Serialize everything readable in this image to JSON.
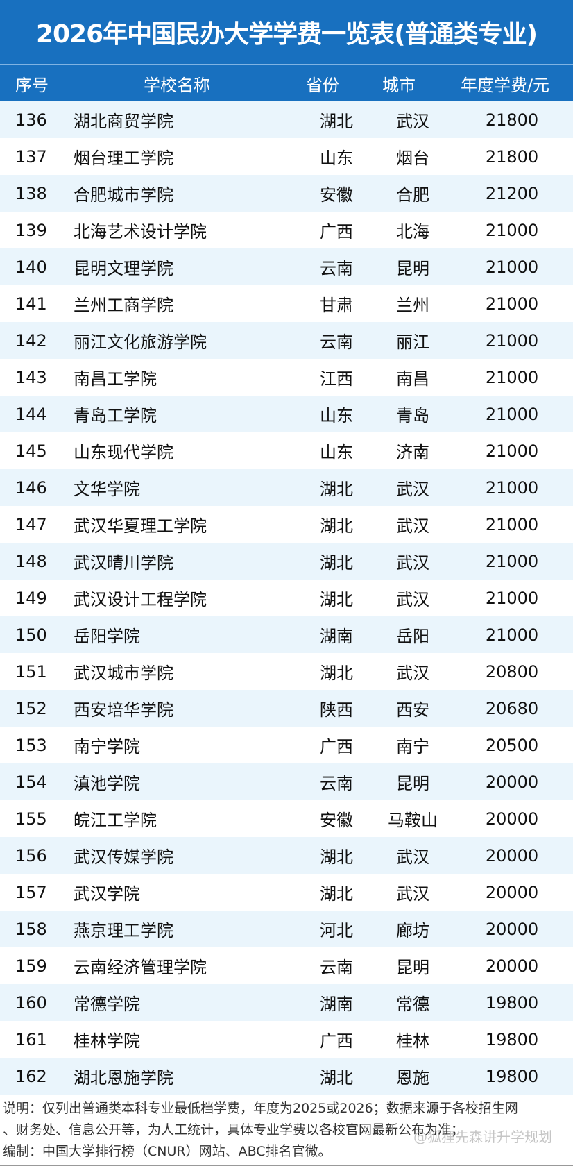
{
  "title": "2026年中国民办大学学费一览表(普通类专业)",
  "headers": [
    "序号",
    "学校名称",
    "省份",
    "城市",
    "年度学费/元"
  ],
  "rows": [
    [
      "136",
      "湖北商贸学院",
      "湖北",
      "武汉",
      "21800"
    ],
    [
      "137",
      "烟台理工学院",
      "山东",
      "烟台",
      "21800"
    ],
    [
      "138",
      "合肥城市学院",
      "安徽",
      "合肥",
      "21200"
    ],
    [
      "139",
      "北海艺术设计学院",
      "广西",
      "北海",
      "21000"
    ],
    [
      "140",
      "昆明文理学院",
      "云南",
      "昆明",
      "21000"
    ],
    [
      "141",
      "兰州工商学院",
      "甘肃",
      "兰州",
      "21000"
    ],
    [
      "142",
      "丽江文化旅游学院",
      "云南",
      "丽江",
      "21000"
    ],
    [
      "143",
      "南昌工学院",
      "江西",
      "南昌",
      "21000"
    ],
    [
      "144",
      "青岛工学院",
      "山东",
      "青岛",
      "21000"
    ],
    [
      "145",
      "山东现代学院",
      "山东",
      "济南",
      "21000"
    ],
    [
      "146",
      "文华学院",
      "湖北",
      "武汉",
      "21000"
    ],
    [
      "147",
      "武汉华夏理工学院",
      "湖北",
      "武汉",
      "21000"
    ],
    [
      "148",
      "武汉晴川学院",
      "湖北",
      "武汉",
      "21000"
    ],
    [
      "149",
      "武汉设计工程学院",
      "湖北",
      "武汉",
      "21000"
    ],
    [
      "150",
      "岳阳学院",
      "湖南",
      "岳阳",
      "21000"
    ],
    [
      "151",
      "武汉城市学院",
      "湖北",
      "武汉",
      "20800"
    ],
    [
      "152",
      "西安培华学院",
      "陕西",
      "西安",
      "20680"
    ],
    [
      "153",
      "南宁学院",
      "广西",
      "南宁",
      "20500"
    ],
    [
      "154",
      "滇池学院",
      "云南",
      "昆明",
      "20000"
    ],
    [
      "155",
      "皖江工学院",
      "安徽",
      "马鞍山",
      "20000"
    ],
    [
      "156",
      "武汉传媒学院",
      "湖北",
      "武汉",
      "20000"
    ],
    [
      "157",
      "武汉学院",
      "湖北",
      "武汉",
      "20000"
    ],
    [
      "158",
      "燕京理工学院",
      "河北",
      "廊坊",
      "20000"
    ],
    [
      "159",
      "云南经济管理学院",
      "云南",
      "昆明",
      "20000"
    ],
    [
      "160",
      "常德学院",
      "湖南",
      "常德",
      "19800"
    ],
    [
      "161",
      "桂林学院",
      "广西",
      "桂林",
      "19800"
    ],
    [
      "162",
      "湖北恩施学院",
      "湖北",
      "恩施",
      "19800"
    ]
  ],
  "footer": [
    "说明：仅列出普通类本科专业最低档学费，年度为2025或2026；数据来源于各校招生网",
    "、财务处、信息公开等，为人工统计，具体专业学费以各校官网最新公布为准；",
    "编制：中国大学排行榜（CNUR）网站、ABC排名官微。"
  ],
  "watermark": "@狐狸先森讲升学规划",
  "colors": {
    "header_bg": "#1870bf",
    "row_alt": "#eaf5fc"
  }
}
